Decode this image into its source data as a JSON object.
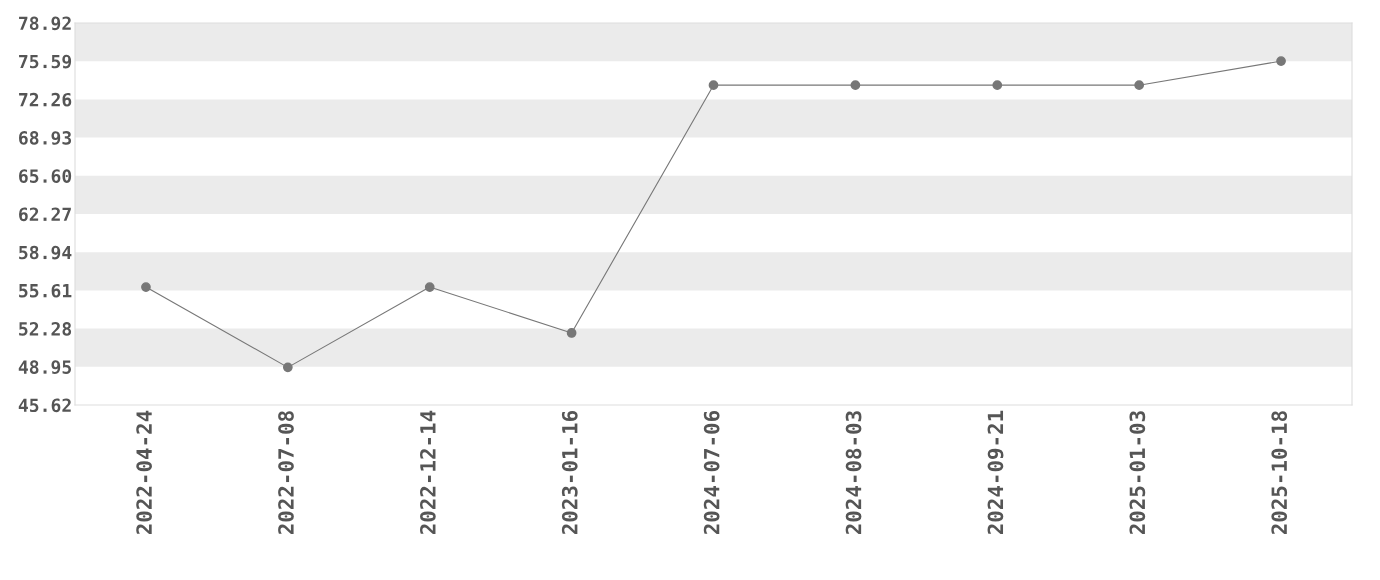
{
  "chart_data": {
    "type": "line",
    "categories": [
      "2022-04-24",
      "2022-07-08",
      "2022-12-14",
      "2023-01-16",
      "2024-07-06",
      "2024-08-03",
      "2024-09-21",
      "2025-01-03",
      "2025-10-18"
    ],
    "series": [
      {
        "color": "#777777",
        "values": [
          55.9,
          48.9,
          55.9,
          51.9,
          73.5,
          73.5,
          73.5,
          73.5,
          75.6
        ]
      }
    ],
    "ylim": [
      45.62,
      78.92
    ],
    "yticks": [
      {
        "value": 45.62,
        "label": "45.62"
      },
      {
        "value": 48.95,
        "label": "48.95"
      },
      {
        "value": 52.28,
        "label": "52.28"
      },
      {
        "value": 55.61,
        "label": "55.61"
      },
      {
        "value": 58.94,
        "label": "58.94"
      },
      {
        "value": 62.27,
        "label": "62.27"
      },
      {
        "value": 65.6,
        "label": "65.60"
      },
      {
        "value": 68.93,
        "label": "68.93"
      },
      {
        "value": 72.26,
        "label": "72.26"
      },
      {
        "value": 75.59,
        "label": "75.59"
      },
      {
        "value": 78.92,
        "label": "78.92"
      }
    ],
    "bands": [
      {
        "axis": "y",
        "from": 75.59,
        "to": 78.92,
        "color": "#ebebeb"
      },
      {
        "axis": "y",
        "from": 68.93,
        "to": 72.26,
        "color": "#ebebeb"
      },
      {
        "axis": "y",
        "from": 62.27,
        "to": 65.6,
        "color": "#ebebeb"
      },
      {
        "axis": "y",
        "from": 55.61,
        "to": 58.94,
        "color": "#ebebeb"
      },
      {
        "axis": "y",
        "from": 48.95,
        "to": 52.28,
        "color": "#ebebeb"
      }
    ],
    "marker": "circle",
    "line_style": "solid"
  }
}
